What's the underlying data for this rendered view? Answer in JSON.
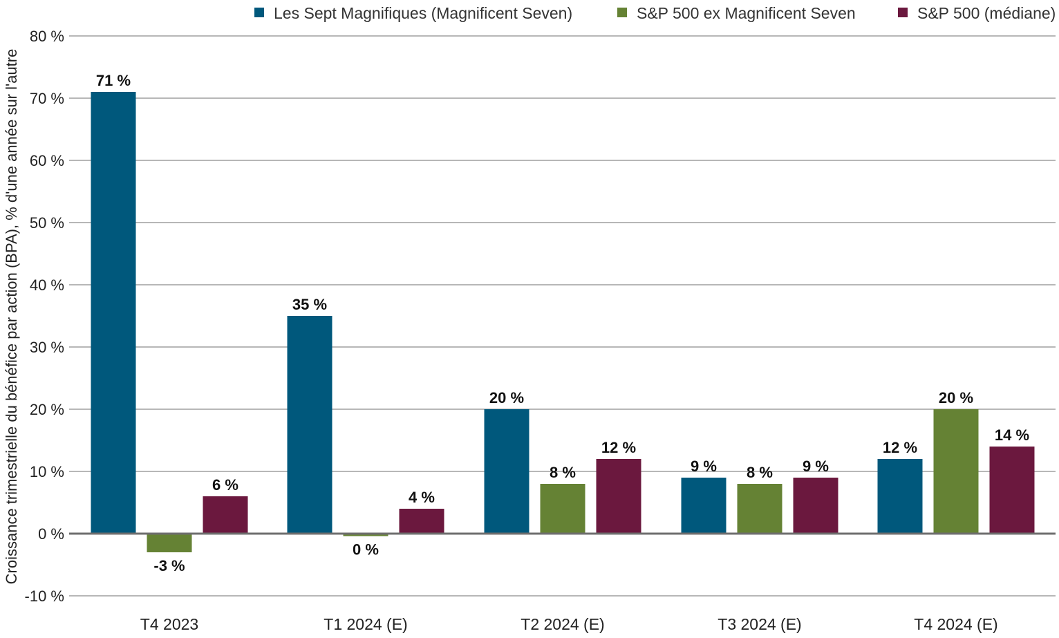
{
  "chart_data": {
    "type": "bar",
    "title": "",
    "xlabel": "",
    "ylabel": "Croissance trimestrielle du bénéfice par action (BPA), % d'une année sur l'autre",
    "ylim": [
      -10,
      80
    ],
    "yticks": [
      -10,
      0,
      10,
      20,
      30,
      40,
      50,
      60,
      70,
      80
    ],
    "ytick_labels": [
      "-10 %",
      "0 %",
      "10 %",
      "20 %",
      "30 %",
      "40 %",
      "50 %",
      "60 %",
      "70 %",
      "80 %"
    ],
    "grid": true,
    "legend_position": "top",
    "categories": [
      "T4 2023",
      "T1 2024 (E)",
      "T2 2024 (E)",
      "T3 2024 (E)",
      "T4 2024 (E)"
    ],
    "series": [
      {
        "name": "Les Sept Magnifiques (Magnificent Seven)",
        "color": "#00587c",
        "values": [
          71,
          35,
          20,
          9,
          12
        ],
        "labels": [
          "71 %",
          "35 %",
          "20 %",
          "9 %",
          "12 %"
        ]
      },
      {
        "name": "S&P 500 ex Magnificent Seven",
        "color": "#658234",
        "values": [
          -3,
          -0.4,
          8,
          8,
          20
        ],
        "labels": [
          "-3 %",
          "0 %",
          "8 %",
          "8 %",
          "20 %"
        ]
      },
      {
        "name": "S&P 500 (médiane)",
        "color": "#6b183e",
        "values": [
          6,
          4,
          12,
          9,
          14
        ],
        "labels": [
          "6 %",
          "4 %",
          "12 %",
          "9 %",
          "14 %"
        ]
      }
    ]
  }
}
